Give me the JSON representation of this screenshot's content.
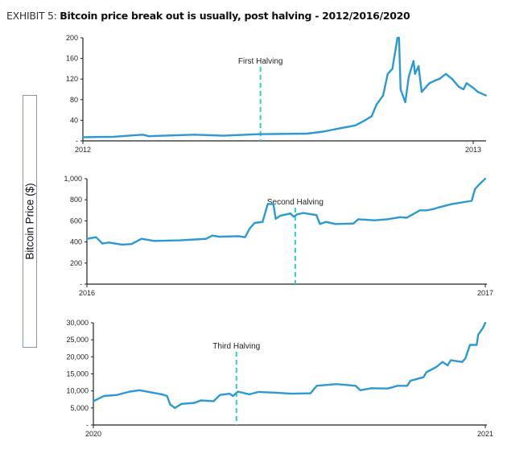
{
  "title": {
    "prefix": "EXHIBIT 5:",
    "text": "Bitcoin price break out is usually, post halving - 2012/2016/2020"
  },
  "shared_ylabel": "Bitcoin Price ($)",
  "colors": {
    "line": "#2b9ad4",
    "halving": "#2ed3c0",
    "axis": "#222222"
  },
  "chart_data": [
    {
      "type": "line",
      "xlim": [
        2012,
        2013.033
      ],
      "ylim": [
        0,
        200
      ],
      "yticks": [
        0,
        40,
        80,
        120,
        160,
        200
      ],
      "ytick_labels": [
        "-",
        "40",
        "80",
        "120",
        "160",
        "200"
      ],
      "xticks": [
        2012,
        2013
      ],
      "xtick_labels": [
        "2012",
        "2013"
      ],
      "annotation": {
        "label": "First Halving",
        "x": 2012.455
      },
      "x": [
        2012,
        2012.079,
        2012.153,
        2012.169,
        2012.285,
        2012.36,
        2012.45,
        2012.574,
        2012.616,
        2012.657,
        2012.698,
        2012.723,
        2012.74,
        2012.752,
        2012.769,
        2012.781,
        2012.793,
        2012.806,
        2012.81,
        2012.814,
        2012.826,
        2012.835,
        2012.847,
        2012.851,
        2012.86,
        2012.868,
        2012.888,
        2012.905,
        2012.913,
        2012.93,
        2012.946,
        2012.963,
        2012.975,
        2012.983,
        2013.0,
        2013.012,
        2013.033
      ],
      "y": [
        7,
        8,
        12,
        9,
        12,
        10,
        13,
        14,
        18,
        24,
        30,
        40,
        48,
        70,
        88,
        130,
        140,
        200,
        200,
        100,
        75,
        125,
        155,
        130,
        145,
        95,
        112,
        118,
        120,
        130,
        120,
        105,
        100,
        112,
        103,
        95,
        88
      ]
    },
    {
      "type": "line",
      "xlim": [
        2016,
        2017
      ],
      "ylim": [
        0,
        1000
      ],
      "yticks": [
        0,
        200,
        400,
        600,
        800,
        1000
      ],
      "ytick_labels": [
        "-",
        "200",
        "400",
        "600",
        "800",
        "1,000"
      ],
      "xticks": [
        2016,
        2017
      ],
      "xtick_labels": [
        "2016",
        "2017"
      ],
      "annotation": {
        "label": "Second Halving",
        "x": 2016.523
      },
      "x": [
        2016,
        2016.023,
        2016.039,
        2016.055,
        2016.088,
        2016.112,
        2016.137,
        2016.169,
        2016.234,
        2016.299,
        2016.315,
        2016.332,
        2016.38,
        2016.397,
        2016.409,
        2016.421,
        2016.441,
        2016.454,
        2016.468,
        2016.474,
        2016.486,
        2016.511,
        2016.519,
        2016.527,
        2016.543,
        2016.576,
        2016.585,
        2016.6,
        2016.624,
        2016.669,
        2016.681,
        2016.722,
        2016.754,
        2016.787,
        2016.803,
        2016.836,
        2016.852,
        2016.868,
        2016.885,
        2016.917,
        2016.966,
        2016.974,
        2016.986,
        2017
      ],
      "y": [
        430,
        445,
        385,
        395,
        375,
        380,
        430,
        410,
        415,
        430,
        460,
        450,
        455,
        445,
        530,
        580,
        590,
        760,
        760,
        620,
        650,
        670,
        640,
        660,
        675,
        655,
        570,
        590,
        570,
        575,
        615,
        605,
        615,
        635,
        630,
        700,
        700,
        710,
        730,
        760,
        790,
        900,
        950,
        1000
      ]
    },
    {
      "type": "line",
      "xlim": [
        2020,
        2021
      ],
      "ylim": [
        0,
        30000
      ],
      "yticks": [
        0,
        5000,
        10000,
        15000,
        20000,
        25000,
        30000
      ],
      "ytick_labels": [
        "-",
        "5,000",
        "10,000",
        "15,000",
        "20,000",
        "25,000",
        "30,000"
      ],
      "xticks": [
        2020,
        2021
      ],
      "xtick_labels": [
        "2020",
        "2021"
      ],
      "annotation": {
        "label": "Third Halving",
        "x": 2020.365
      },
      "x": [
        2020,
        2020.027,
        2020.06,
        2020.093,
        2020.118,
        2020.151,
        2020.175,
        2020.188,
        2020.196,
        2020.208,
        2020.225,
        2020.258,
        2020.274,
        2020.307,
        2020.323,
        2020.348,
        2020.356,
        2020.369,
        2020.398,
        2020.422,
        2020.463,
        2020.505,
        2020.554,
        2020.57,
        2020.62,
        2020.669,
        2020.681,
        2020.71,
        2020.751,
        2020.776,
        2020.801,
        2020.809,
        2020.842,
        2020.85,
        2020.875,
        2020.891,
        2020.904,
        2020.912,
        2020.941,
        2020.949,
        2020.961,
        2020.978,
        2020.982,
        2020.994,
        2021
      ],
      "y": [
        7000,
        8500,
        8800,
        9800,
        10200,
        9500,
        9000,
        8500,
        6000,
        5000,
        6200,
        6500,
        7200,
        7000,
        8800,
        9200,
        8500,
        9800,
        9000,
        9700,
        9500,
        9200,
        9300,
        11500,
        12000,
        11500,
        10200,
        10800,
        10700,
        11500,
        11500,
        13000,
        14000,
        15500,
        17000,
        18500,
        17500,
        19000,
        18500,
        19500,
        23500,
        23500,
        26500,
        28500,
        30000
      ]
    }
  ]
}
